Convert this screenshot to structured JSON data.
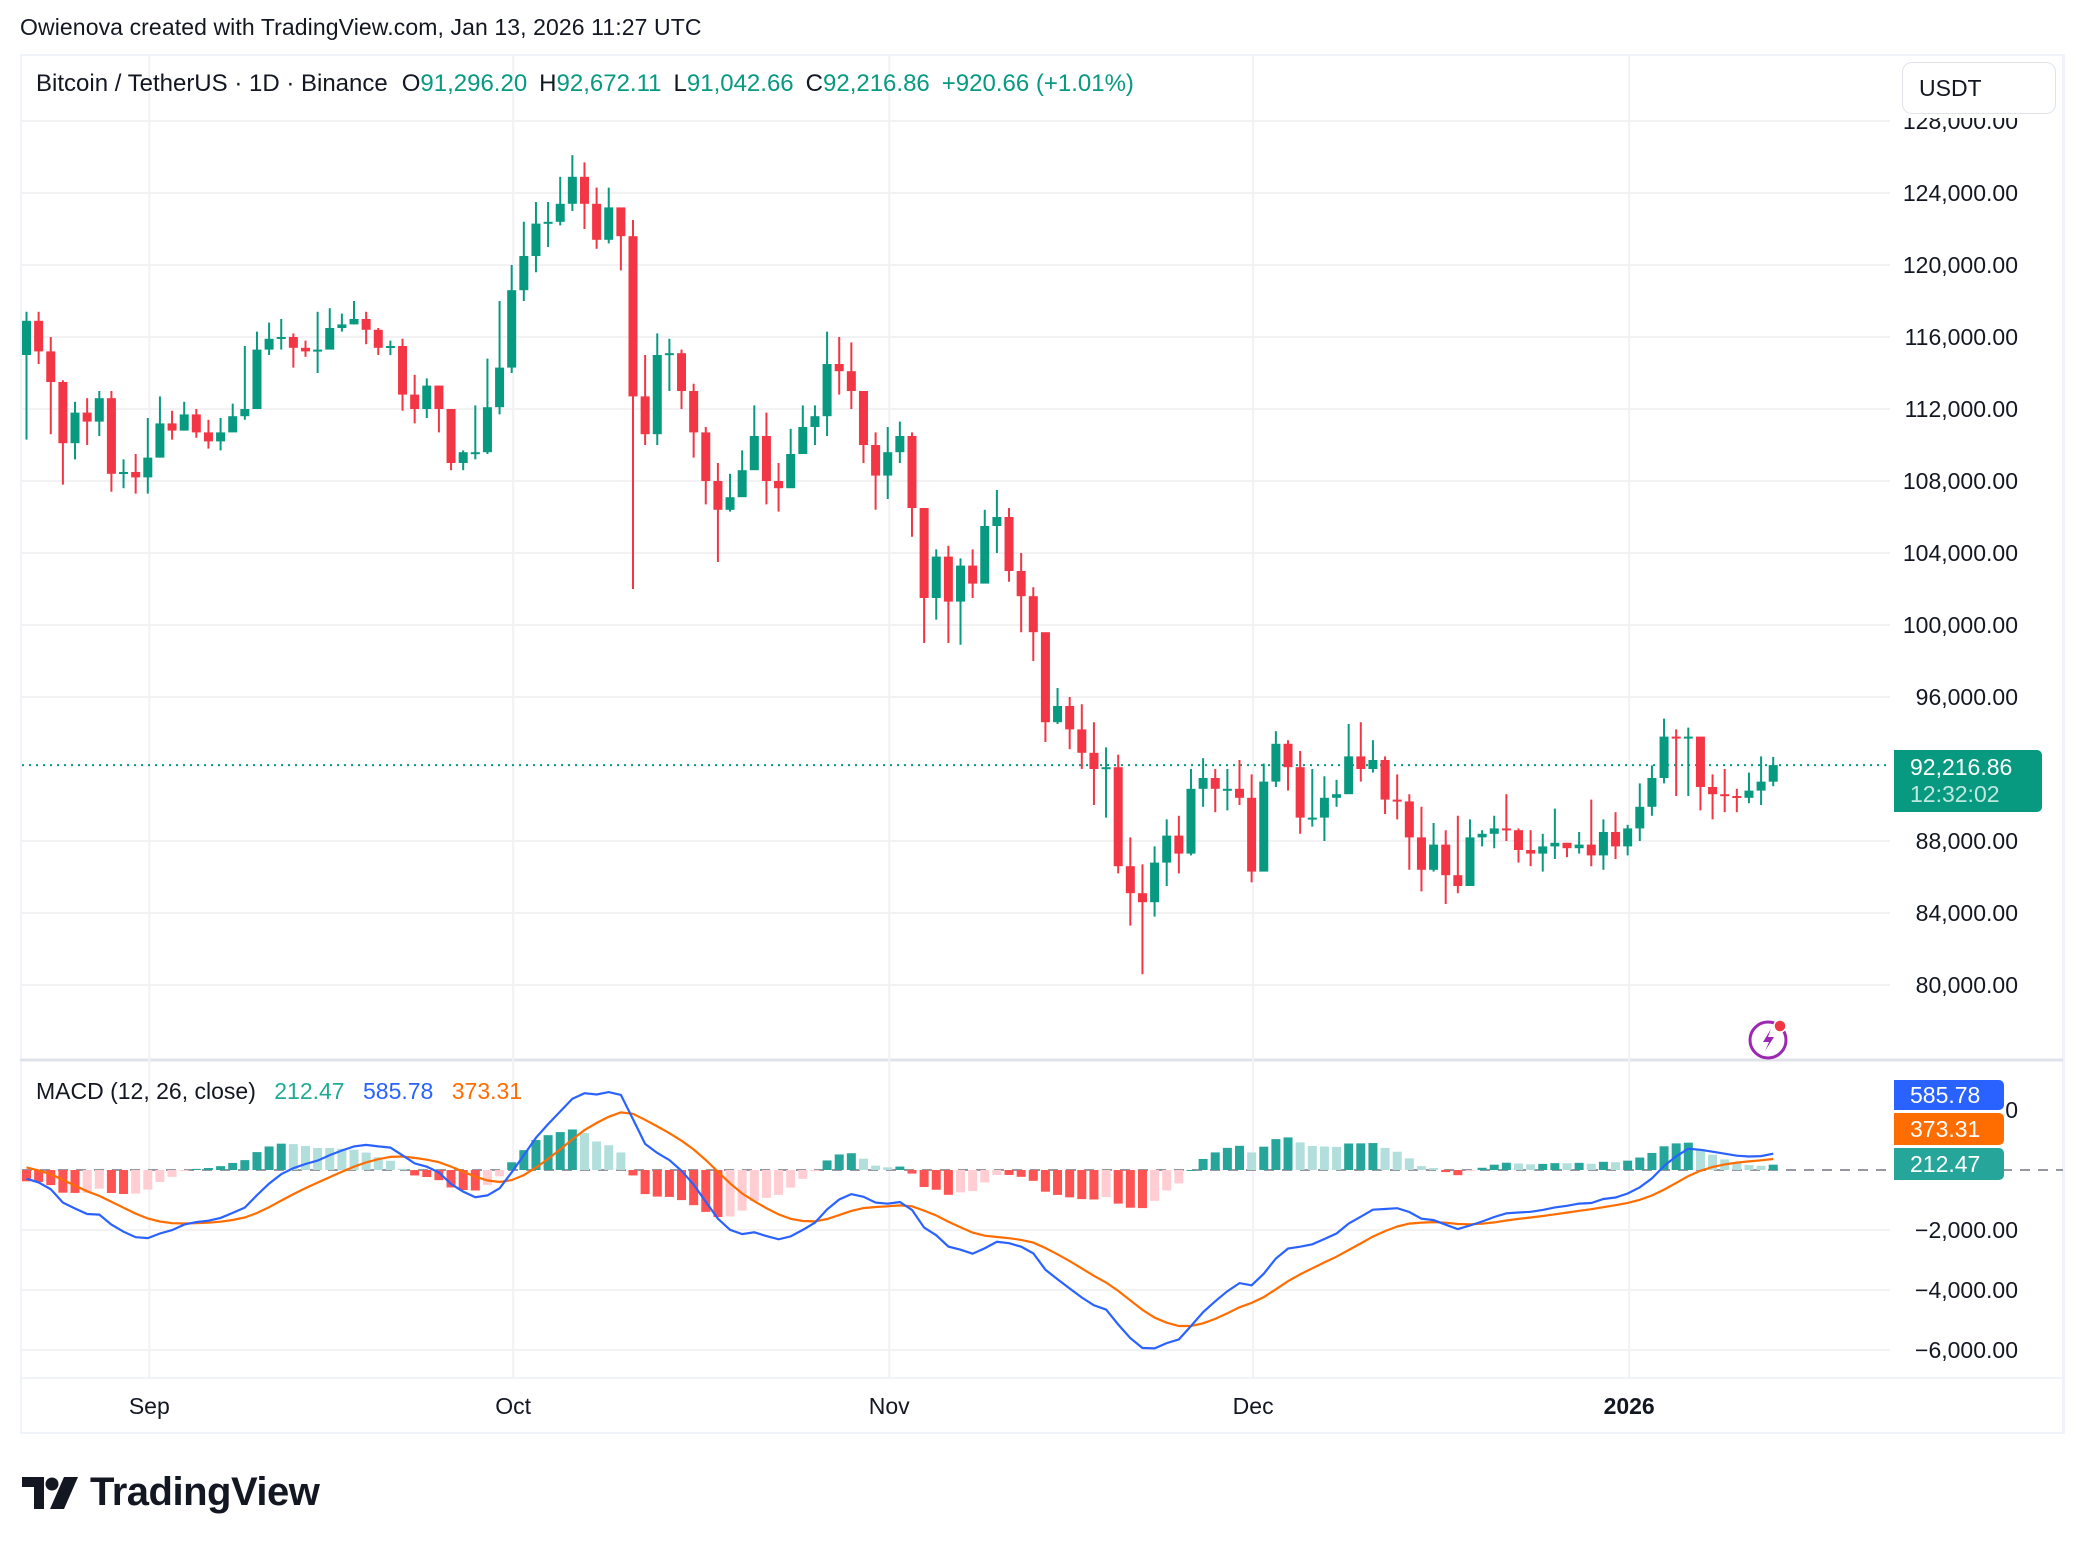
{
  "caption": "Owienova created with TradingView.com, Jan 13, 2026 11:27 UTC",
  "header": {
    "symbol": "Bitcoin / TetherUS · 1D · Binance",
    "open_label": "O",
    "open": "91,296.20",
    "high_label": "H",
    "high": "92,672.11",
    "low_label": "L",
    "low": "91,042.66",
    "close_label": "C",
    "close": "92,216.86",
    "change": "+920.66 (+1.01%)"
  },
  "currency_button": "USDT",
  "price_axis": {
    "labels": [
      "128,000.00",
      "124,000.00",
      "120,000.00",
      "116,000.00",
      "112,000.00",
      "108,000.00",
      "104,000.00",
      "100,000.00",
      "96,000.00",
      "88,000.00",
      "84,000.00",
      "80,000.00"
    ],
    "values": [
      128000,
      124000,
      120000,
      116000,
      112000,
      108000,
      104000,
      100000,
      96000,
      88000,
      84000,
      80000
    ]
  },
  "last_price": {
    "value": "92,216.86",
    "countdown": "12:32:02"
  },
  "macd": {
    "title": "MACD (12, 26, close)",
    "histogram": "212.47",
    "macd": "585.78",
    "signal": "373.31",
    "axis_labels": [
      "0",
      "−2,000.00",
      "−4,000.00",
      "−6,000.00"
    ],
    "axis_values": [
      0,
      -2000,
      -4000,
      -6000
    ]
  },
  "time_axis": {
    "labels": [
      "Sep",
      "Oct",
      "Nov",
      "Dec",
      "2026"
    ],
    "indices": [
      10,
      40,
      71,
      101,
      132
    ]
  },
  "brand": "TradingView",
  "colors": {
    "up": "#089981",
    "down": "#f23645",
    "macd_line": "#2962ff",
    "signal_line": "#ff6d00",
    "hist_up_strong": "#26a69a",
    "hist_up_weak": "#b2dfdb",
    "hist_down_strong": "#ff5252",
    "hist_down_weak": "#ffcdd2"
  },
  "chart_data": {
    "type": "candlestick",
    "title": "Bitcoin / TetherUS · 1D · Binance",
    "x_start": "Aug 22, 2025",
    "x_end": "Jan 13, 2026",
    "xlabel": "",
    "ylabel": "USDT",
    "ylim": [
      76000,
      130000
    ],
    "grid": true,
    "closes_k": [
      116.9,
      115.2,
      113.5,
      110.1,
      111.8,
      111.3,
      112.6,
      108.4,
      108.5,
      108.2,
      109.3,
      111.2,
      110.8,
      111.7,
      110.7,
      110.2,
      110.7,
      111.6,
      112.0,
      115.3,
      115.9,
      116.0,
      115.4,
      115.2,
      115.3,
      116.5,
      116.7,
      117.0,
      116.4,
      115.4,
      115.5,
      112.8,
      112.0,
      113.3,
      112.0,
      109.0,
      109.6,
      109.6,
      112.1,
      114.3,
      118.6,
      120.5,
      122.3,
      122.4,
      123.4,
      124.9,
      123.4,
      121.4,
      123.2,
      121.6,
      112.7,
      110.6,
      115.0,
      115.1,
      113.0,
      110.7,
      108.0,
      106.4,
      107.1,
      108.6,
      110.5,
      108.0,
      107.6,
      109.5,
      111.0,
      111.6,
      114.5,
      114.1,
      113.0,
      110.0,
      108.3,
      109.6,
      110.5,
      106.5,
      101.5,
      103.8,
      101.3,
      103.3,
      102.3,
      105.5,
      106.0,
      103.0,
      101.6,
      99.6,
      94.6,
      95.5,
      94.2,
      92.9,
      92.0,
      92.1,
      86.6,
      85.1,
      84.6,
      86.8,
      88.3,
      87.3,
      90.9,
      91.5,
      90.9,
      90.9,
      90.4,
      86.3,
      91.3,
      93.4,
      92.1,
      89.3,
      89.3,
      90.4,
      90.6,
      92.7,
      92.0,
      92.5,
      90.3,
      90.2,
      88.2,
      86.4,
      87.8,
      86.1,
      85.5,
      88.2,
      88.4,
      88.7,
      88.6,
      87.5,
      87.3,
      87.7,
      87.9,
      87.6,
      87.8,
      87.2,
      88.5,
      87.7,
      88.7,
      89.9,
      91.5,
      93.8,
      93.7,
      93.8,
      91.0,
      90.6,
      90.5,
      90.4,
      90.8,
      91.3,
      92.217
    ],
    "opens_k": [
      115.0,
      116.9,
      115.2,
      113.5,
      110.1,
      111.8,
      111.3,
      112.6,
      108.4,
      108.5,
      108.2,
      109.3,
      111.2,
      110.8,
      111.7,
      110.7,
      110.2,
      110.7,
      111.6,
      112.0,
      115.3,
      115.9,
      116.0,
      115.4,
      115.2,
      115.3,
      116.5,
      116.7,
      117.0,
      116.4,
      115.4,
      115.5,
      112.8,
      112.0,
      113.3,
      112.0,
      109.0,
      109.6,
      109.6,
      112.1,
      114.3,
      118.6,
      120.5,
      122.3,
      122.4,
      123.4,
      124.9,
      123.4,
      121.4,
      123.2,
      121.6,
      112.7,
      110.6,
      115.0,
      115.1,
      113.0,
      110.7,
      108.0,
      106.4,
      107.1,
      108.6,
      110.5,
      108.0,
      107.6,
      109.5,
      111.0,
      111.6,
      114.5,
      114.1,
      113.0,
      110.0,
      108.3,
      109.6,
      110.5,
      106.5,
      101.5,
      103.8,
      101.3,
      103.3,
      102.3,
      105.5,
      106.0,
      103.0,
      101.6,
      99.6,
      94.6,
      95.5,
      94.2,
      92.9,
      92.0,
      92.1,
      86.6,
      85.1,
      84.6,
      86.8,
      88.3,
      87.3,
      90.9,
      91.5,
      90.9,
      90.9,
      90.4,
      86.3,
      91.3,
      93.4,
      92.1,
      89.3,
      89.3,
      90.4,
      90.6,
      92.7,
      92.0,
      92.5,
      90.3,
      90.2,
      88.2,
      86.4,
      87.8,
      86.1,
      85.5,
      88.2,
      88.4,
      88.7,
      88.6,
      87.5,
      87.3,
      87.7,
      87.9,
      87.6,
      87.8,
      87.2,
      88.5,
      87.7,
      88.7,
      89.9,
      91.5,
      93.8,
      93.7,
      93.8,
      91.0,
      90.6,
      90.5,
      90.4,
      90.8,
      91.296
    ],
    "highs_k": [
      117.4,
      117.4,
      116.0,
      113.6,
      112.4,
      112.6,
      113.0,
      113.0,
      109.2,
      109.5,
      111.5,
      112.7,
      111.9,
      112.4,
      112.0,
      111.4,
      111.5,
      112.3,
      115.5,
      116.3,
      116.8,
      117.0,
      116.2,
      115.8,
      117.4,
      117.6,
      117.3,
      118.0,
      117.4,
      116.5,
      115.8,
      115.9,
      113.9,
      113.7,
      113.3,
      112.0,
      109.7,
      112.2,
      114.8,
      118.0,
      120.0,
      122.4,
      123.5,
      123.5,
      124.9,
      126.1,
      125.7,
      124.3,
      124.3,
      123.1,
      122.5,
      115.0,
      116.2,
      115.9,
      115.3,
      113.4,
      111.0,
      109.0,
      108.4,
      109.7,
      112.2,
      111.8,
      109.0,
      110.9,
      112.2,
      112.2,
      116.3,
      116.0,
      115.7,
      113.0,
      110.7,
      111.0,
      111.3,
      110.7,
      105.4,
      104.2,
      104.4,
      103.7,
      104.2,
      106.4,
      107.5,
      106.5,
      104.0,
      102.1,
      99.0,
      96.5,
      96.0,
      95.6,
      94.6,
      93.2,
      92.8,
      88.2,
      86.7,
      87.7,
      89.2,
      89.4,
      92.0,
      92.6,
      92.0,
      92.0,
      92.5,
      91.7,
      92.3,
      94.1,
      93.6,
      93.0,
      92.0,
      91.6,
      91.4,
      94.5,
      94.6,
      93.6,
      92.7,
      91.7,
      90.6,
      89.9,
      89.0,
      88.6,
      89.4,
      89.2,
      88.6,
      89.4,
      90.6,
      88.7,
      88.6,
      88.4,
      89.8,
      87.9,
      88.5,
      90.3,
      89.2,
      89.6,
      88.9,
      91.2,
      92.2,
      94.8,
      94.2,
      94.3,
      93.2,
      91.7,
      92.0,
      90.9,
      91.8,
      92.7,
      92.672
    ],
    "lows_k": [
      110.3,
      114.5,
      110.6,
      107.8,
      109.2,
      110.0,
      110.5,
      107.4,
      107.6,
      107.3,
      107.3,
      109.3,
      110.3,
      110.8,
      110.4,
      109.8,
      109.7,
      110.8,
      111.4,
      114.8,
      115.0,
      115.3,
      114.3,
      114.9,
      114.0,
      115.9,
      116.3,
      116.7,
      115.6,
      115.0,
      115.0,
      111.9,
      111.2,
      111.5,
      110.7,
      108.6,
      108.6,
      109.2,
      109.5,
      111.7,
      114.0,
      118.0,
      119.6,
      121.0,
      122.2,
      123.0,
      122.0,
      120.9,
      121.2,
      119.7,
      102.0,
      110.0,
      110.0,
      113.0,
      112.0,
      109.3,
      106.7,
      103.5,
      106.3,
      107.5,
      110.0,
      106.7,
      106.3,
      108.0,
      110.4,
      110.0,
      110.5,
      112.8,
      112.0,
      109.0,
      106.4,
      107.0,
      109.0,
      104.9,
      99.0,
      100.3,
      99.0,
      98.9,
      101.5,
      103.9,
      104.0,
      102.4,
      99.6,
      98.0,
      93.5,
      94.5,
      93.1,
      92.0,
      90.0,
      89.3,
      86.2,
      83.3,
      80.6,
      83.8,
      85.5,
      86.2,
      87.2,
      89.9,
      89.6,
      89.7,
      90.0,
      85.7,
      86.5,
      91.0,
      90.8,
      88.4,
      88.8,
      88.0,
      89.9,
      92.0,
      91.3,
      91.8,
      89.5,
      89.2,
      86.4,
      85.2,
      86.3,
      84.5,
      85.1,
      86.6,
      87.7,
      87.6,
      88.0,
      86.8,
      86.6,
      86.3,
      87.0,
      87.1,
      87.3,
      86.6,
      86.4,
      87.0,
      87.2,
      88.0,
      89.4,
      91.2,
      90.5,
      90.5,
      89.7,
      89.2,
      89.6,
      89.6,
      90.1,
      90.0,
      91.043
    ],
    "indicator": {
      "name": "MACD (12, 26, close)",
      "final_histogram": 212.47,
      "final_macd": 585.78,
      "final_signal": 373.31,
      "ylim": [
        -7000,
        3000
      ]
    }
  }
}
